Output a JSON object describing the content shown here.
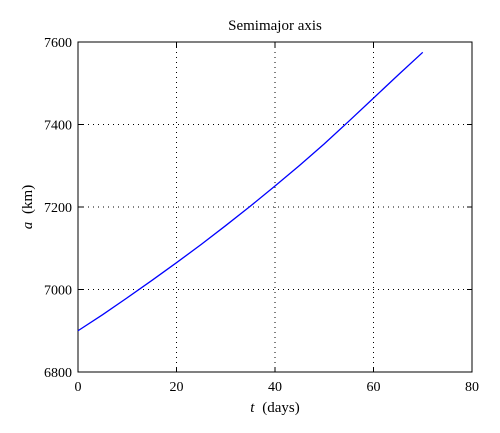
{
  "chart_data": {
    "type": "line",
    "title": "Semimajor axis",
    "xlabel": {
      "symbol": "t",
      "unit": "(days)"
    },
    "ylabel": {
      "symbol": "a",
      "unit": "(km)"
    },
    "xlim": [
      0,
      80
    ],
    "ylim": [
      6800,
      7600
    ],
    "xticks": [
      "0",
      "20",
      "40",
      "60",
      "80"
    ],
    "yticks": [
      "6800",
      "7000",
      "7200",
      "7400",
      "7600"
    ],
    "grid": true,
    "series": [
      {
        "color": "#0000ff",
        "x": [
          0,
          5,
          10,
          15,
          20,
          25,
          30,
          35,
          40,
          45,
          50,
          55,
          60,
          65,
          70
        ],
        "y": [
          6900,
          6939,
          6980,
          7022,
          7065,
          7109,
          7155,
          7202,
          7251,
          7301,
          7353,
          7408,
          7464,
          7520,
          7575
        ]
      }
    ]
  }
}
